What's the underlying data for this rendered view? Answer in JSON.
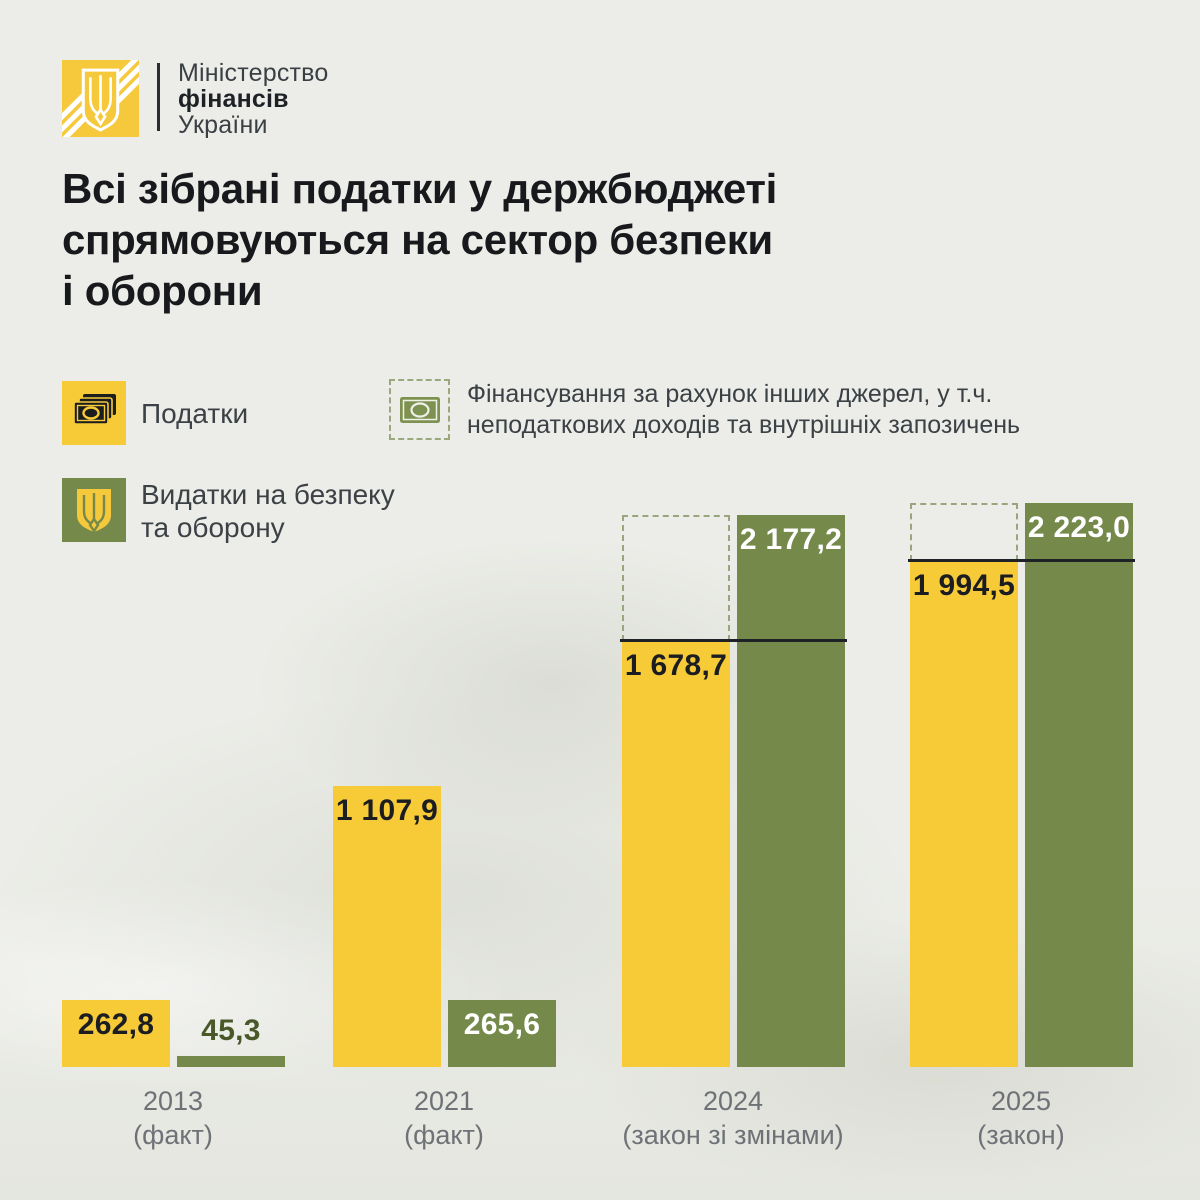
{
  "brand": {
    "line1": "Міністерство",
    "line2": "фінансів",
    "line3": "України"
  },
  "title_lines": [
    "Всі зібрані податки у держбюджеті",
    "спрямовуються на сектор безпеки",
    "і оборони"
  ],
  "legend": {
    "taxes_label": "Податки",
    "other_financing_line1": "Фінансування за рахунок інших джерел, у т.ч.",
    "other_financing_line2": "неподаткових доходів та внутрішніх запозичень",
    "defense_line1": "Видатки на безпеку",
    "defense_line2": "та оборону"
  },
  "colors": {
    "taxes_yellow": "#F7CB38",
    "defense_green": "#75894B",
    "background": "#ECEDE8",
    "title_text": "#17191C",
    "axis_text": "#6E7277",
    "green_value_text": "#4A5829",
    "dashed_border": "#98A57D"
  },
  "chart_data": {
    "type": "bar",
    "categories": [
      "2013 (факт)",
      "2021 (факт)",
      "2024 (закон зі змінами)",
      "2025 (закон)"
    ],
    "category_label_lines": [
      [
        "2013",
        "(факт)"
      ],
      [
        "2021",
        "(факт)"
      ],
      [
        "2024",
        "(закон зі змінами)"
      ],
      [
        "2025",
        "(закон)"
      ]
    ],
    "series": [
      {
        "name": "Податки",
        "values": [
          262.8,
          1107.9,
          1678.7,
          1994.5
        ],
        "labels": [
          "262,8",
          "1 107,9",
          "1 678,7",
          "1 994,5"
        ],
        "color": "#F7CB38"
      },
      {
        "name": "Видатки на безпеку та оборону",
        "values": [
          45.3,
          265.6,
          2177.2,
          2223.0
        ],
        "labels": [
          "45,3",
          "265,6",
          "2 177,2",
          "2 223,0"
        ],
        "color": "#75894B"
      }
    ],
    "other_financing_boxes": [
      false,
      false,
      true,
      true
    ],
    "grid": false,
    "legend_position": "top",
    "ylim": [
      0,
      2300
    ]
  }
}
